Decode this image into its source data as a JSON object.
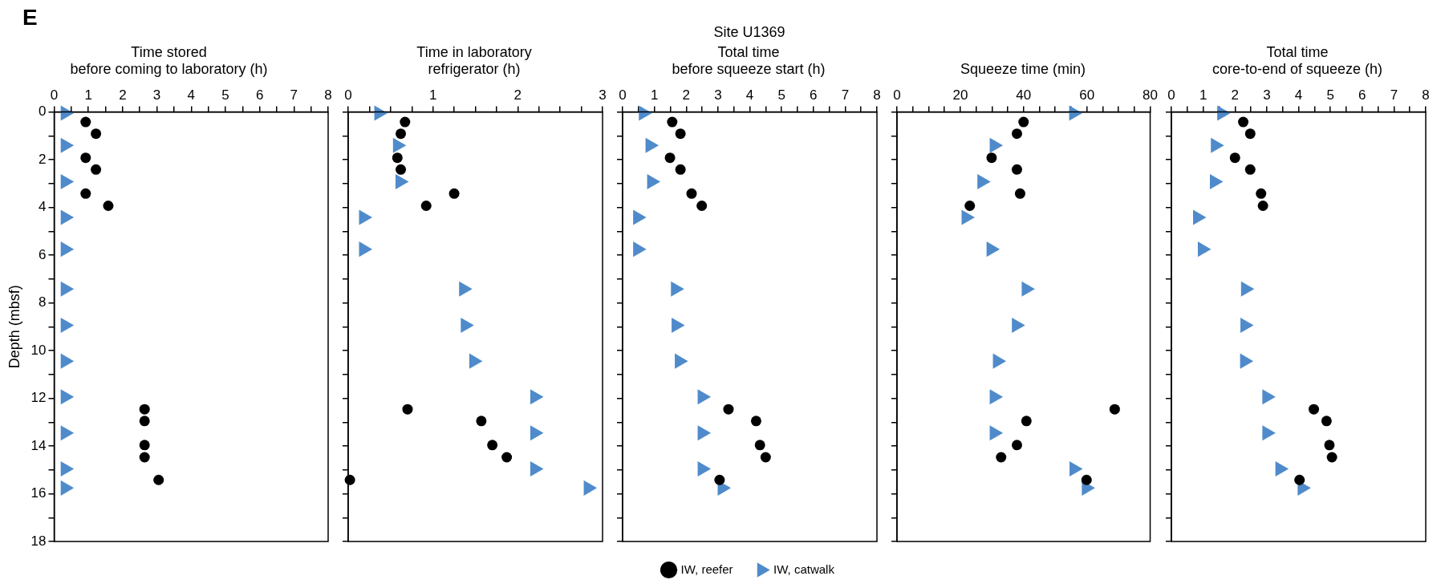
{
  "chart_data": [
    {
      "type": "scatter",
      "title": "Time stored\nbefore coming to laboratory (h)",
      "ylabel": "Depth (mbsf)",
      "annotations": [
        "E",
        "Site U1369"
      ],
      "xlim": [
        0,
        8
      ],
      "xticks": [
        0,
        {
          "value": 0.5,
          "label": null
        },
        1,
        {
          "value": 1.5,
          "label": null
        },
        2,
        {
          "value": 2.5,
          "label": null
        },
        3,
        {
          "value": 3.5,
          "label": null
        },
        4,
        {
          "value": 4.5,
          "label": null
        },
        5,
        {
          "value": 5.5,
          "label": null
        },
        6,
        {
          "value": 6.5,
          "label": null
        },
        7,
        {
          "value": 7.5,
          "label": null
        },
        8
      ],
      "ylim": [
        18,
        0
      ],
      "yticks": [
        0,
        {
          "value": 1,
          "label": null
        },
        2,
        {
          "value": 3,
          "label": null
        },
        4,
        {
          "value": 5,
          "label": null
        },
        6,
        {
          "value": 7,
          "label": null
        },
        8,
        {
          "value": 9,
          "label": null
        },
        10,
        {
          "value": 11,
          "label": null
        },
        12,
        {
          "value": 13,
          "label": null
        },
        14,
        {
          "value": 15,
          "label": null
        },
        16,
        {
          "value": 17,
          "label": null
        },
        18
      ],
      "series": [
        {
          "color": "#000000",
          "marker": "circle",
          "x": [
            0.92,
            1.22,
            0.92,
            1.22,
            0.92,
            1.58,
            2.64,
            2.64,
            2.64,
            2.64,
            3.05
          ],
          "values": [
            0.42,
            0.91,
            1.92,
            2.41,
            3.42,
            3.93,
            12.46,
            12.95,
            13.96,
            14.47,
            15.42
          ]
        },
        {
          "color": "#4f8bcb",
          "marker": "triangle",
          "x": [
            0.32,
            0.32,
            0.32,
            0.32,
            0.32,
            0.32,
            0.32,
            0.32,
            0.32,
            0.32,
            0.32,
            0.32
          ],
          "values": [
            0.05,
            1.4,
            2.92,
            4.42,
            5.75,
            7.42,
            8.94,
            10.44,
            11.94,
            13.45,
            14.96,
            15.76
          ]
        }
      ]
    },
    {
      "type": "scatter",
      "title": "Time in laboratory\nrefrigerator (h)",
      "tick_labels": "x",
      "xlim": [
        0,
        3
      ],
      "xticks": [
        0,
        {
          "value": 0.25,
          "label": null
        },
        {
          "value": 0.5,
          "label": null
        },
        {
          "value": 0.75,
          "label": null
        },
        1,
        {
          "value": 1.25,
          "label": null
        },
        {
          "value": 1.5,
          "label": null
        },
        {
          "value": 1.75,
          "label": null
        },
        2,
        {
          "value": 2.25,
          "label": null
        },
        {
          "value": 2.5,
          "label": null
        },
        {
          "value": 2.75,
          "label": null
        },
        3
      ],
      "ylim": [
        18,
        0
      ],
      "yticks": [
        0,
        {
          "value": 1,
          "label": null
        },
        2,
        {
          "value": 3,
          "label": null
        },
        4,
        {
          "value": 5,
          "label": null
        },
        6,
        {
          "value": 7,
          "label": null
        },
        8,
        {
          "value": 9,
          "label": null
        },
        10,
        {
          "value": 11,
          "label": null
        },
        12,
        {
          "value": 13,
          "label": null
        },
        14,
        {
          "value": 15,
          "label": null
        },
        16,
        {
          "value": 17,
          "label": null
        },
        18
      ],
      "series": [
        {
          "color": "#000000",
          "marker": "circle",
          "x": [
            0.67,
            0.62,
            0.58,
            0.62,
            1.25,
            0.92,
            0.7,
            1.57,
            1.7,
            1.87,
            0.02
          ],
          "values": [
            0.42,
            0.91,
            1.92,
            2.41,
            3.42,
            3.93,
            12.46,
            12.95,
            13.96,
            14.47,
            15.42
          ]
        },
        {
          "color": "#4f8bcb",
          "marker": "triangle",
          "x": [
            0.36,
            0.58,
            0.61,
            0.18,
            0.18,
            1.36,
            1.38,
            1.48,
            2.2,
            2.2,
            2.2,
            2.83
          ],
          "values": [
            0.05,
            1.4,
            2.92,
            4.42,
            5.75,
            7.42,
            8.94,
            10.44,
            11.94,
            13.45,
            14.96,
            15.76
          ]
        }
      ]
    },
    {
      "type": "scatter",
      "title": "Total time\nbefore squeeze start (h)",
      "tick_labels": "x",
      "legend": "bottom",
      "xlim": [
        0,
        8
      ],
      "xticks": [
        0,
        {
          "value": 0.5,
          "label": null
        },
        1,
        {
          "value": 1.5,
          "label": null
        },
        2,
        {
          "value": 2.5,
          "label": null
        },
        3,
        {
          "value": 3.5,
          "label": null
        },
        4,
        {
          "value": 4.5,
          "label": null
        },
        5,
        {
          "value": 5.5,
          "label": null
        },
        6,
        {
          "value": 6.5,
          "label": null
        },
        7,
        {
          "value": 7.5,
          "label": null
        },
        8
      ],
      "ylim": [
        18,
        0
      ],
      "yticks": [
        0,
        {
          "value": 1,
          "label": null
        },
        2,
        {
          "value": 3,
          "label": null
        },
        4,
        {
          "value": 5,
          "label": null
        },
        6,
        {
          "value": 7,
          "label": null
        },
        8,
        {
          "value": 9,
          "label": null
        },
        10,
        {
          "value": 11,
          "label": null
        },
        12,
        {
          "value": 13,
          "label": null
        },
        14,
        {
          "value": 15,
          "label": null
        },
        16,
        {
          "value": 17,
          "label": null
        },
        18
      ],
      "series": [
        {
          "name": "IW, reefer",
          "color": "#000000",
          "marker": "circle",
          "x": [
            1.56,
            1.82,
            1.49,
            1.82,
            2.17,
            2.49,
            3.33,
            4.2,
            4.32,
            4.5,
            3.05
          ],
          "values": [
            0.42,
            0.91,
            1.92,
            2.41,
            3.42,
            3.93,
            12.46,
            12.95,
            13.96,
            14.47,
            15.42
          ]
        },
        {
          "name": "IW, catwalk",
          "color": "#4f8bcb",
          "marker": "triangle",
          "x": [
            0.65,
            0.86,
            0.91,
            0.47,
            0.47,
            1.66,
            1.68,
            1.78,
            2.5,
            2.5,
            2.5,
            3.13
          ],
          "values": [
            0.05,
            1.4,
            2.92,
            4.42,
            5.75,
            7.42,
            8.94,
            10.44,
            11.94,
            13.45,
            14.96,
            15.76
          ]
        }
      ]
    },
    {
      "type": "scatter",
      "title": "Squeeze time (min)",
      "tick_labels": "x",
      "xlim": [
        0,
        80
      ],
      "xticks": [
        0,
        {
          "value": 5,
          "label": null
        },
        {
          "value": 10,
          "label": null
        },
        {
          "value": 15,
          "label": null
        },
        20,
        {
          "value": 25,
          "label": null
        },
        {
          "value": 30,
          "label": null
        },
        {
          "value": 35,
          "label": null
        },
        40,
        {
          "value": 45,
          "label": null
        },
        {
          "value": 50,
          "label": null
        },
        {
          "value": 55,
          "label": null
        },
        60,
        {
          "value": 65,
          "label": null
        },
        {
          "value": 70,
          "label": null
        },
        {
          "value": 75,
          "label": null
        },
        80
      ],
      "ylim": [
        18,
        0
      ],
      "yticks": [
        0,
        {
          "value": 1,
          "label": null
        },
        2,
        {
          "value": 3,
          "label": null
        },
        4,
        {
          "value": 5,
          "label": null
        },
        6,
        {
          "value": 7,
          "label": null
        },
        8,
        {
          "value": 9,
          "label": null
        },
        10,
        {
          "value": 11,
          "label": null
        },
        12,
        {
          "value": 13,
          "label": null
        },
        14,
        {
          "value": 15,
          "label": null
        },
        16,
        {
          "value": 17,
          "label": null
        },
        18
      ],
      "series": [
        {
          "color": "#000000",
          "marker": "circle",
          "x": [
            40,
            37.9,
            29.9,
            37.9,
            38.9,
            23,
            68.8,
            40.9,
            37.9,
            32.9,
            59.9
          ],
          "values": [
            0.42,
            0.91,
            1.92,
            2.41,
            3.42,
            3.93,
            12.46,
            12.95,
            13.96,
            14.47,
            15.42
          ]
        },
        {
          "color": "#4f8bcb",
          "marker": "triangle",
          "x": [
            55.8,
            30.7,
            26.8,
            21.8,
            29.7,
            40.8,
            37.7,
            31.7,
            30.7,
            30.7,
            55.9,
            59.8
          ],
          "values": [
            0.05,
            1.4,
            2.92,
            4.42,
            5.75,
            7.42,
            8.94,
            10.44,
            11.94,
            13.45,
            14.96,
            15.76
          ]
        }
      ]
    },
    {
      "type": "scatter",
      "title": "Total time\ncore-to-end of squeeze (h)",
      "tick_labels": "x",
      "xlim": [
        0,
        8
      ],
      "xticks": [
        0,
        {
          "value": 0.5,
          "label": null
        },
        1,
        {
          "value": 1.5,
          "label": null
        },
        2,
        {
          "value": 2.5,
          "label": null
        },
        3,
        {
          "value": 3.5,
          "label": null
        },
        4,
        {
          "value": 4.5,
          "label": null
        },
        5,
        {
          "value": 5.5,
          "label": null
        },
        6,
        {
          "value": 6.5,
          "label": null
        },
        7,
        {
          "value": 7.5,
          "label": null
        },
        8
      ],
      "ylim": [
        18,
        0
      ],
      "yticks": [
        0,
        {
          "value": 1,
          "label": null
        },
        2,
        {
          "value": 3,
          "label": null
        },
        4,
        {
          "value": 5,
          "label": null
        },
        6,
        {
          "value": 7,
          "label": null
        },
        8,
        {
          "value": 9,
          "label": null
        },
        10,
        {
          "value": 11,
          "label": null
        },
        12,
        {
          "value": 13,
          "label": null
        },
        14,
        {
          "value": 15,
          "label": null
        },
        16,
        {
          "value": 17,
          "label": null
        },
        18
      ],
      "series": [
        {
          "color": "#000000",
          "marker": "circle",
          "x": [
            2.26,
            2.48,
            2,
            2.48,
            2.82,
            2.88,
            4.48,
            4.88,
            4.97,
            5.05,
            4.03
          ],
          "values": [
            0.42,
            0.91,
            1.92,
            2.41,
            3.42,
            3.93,
            12.46,
            12.95,
            13.96,
            14.47,
            15.42
          ]
        },
        {
          "color": "#4f8bcb",
          "marker": "triangle",
          "x": [
            1.58,
            1.38,
            1.35,
            0.82,
            0.97,
            2.33,
            2.31,
            2.3,
            3,
            3,
            3.41,
            4.11
          ],
          "values": [
            0.05,
            1.4,
            2.92,
            4.42,
            5.75,
            7.42,
            8.94,
            10.44,
            11.94,
            13.45,
            14.96,
            15.76
          ]
        }
      ]
    }
  ]
}
